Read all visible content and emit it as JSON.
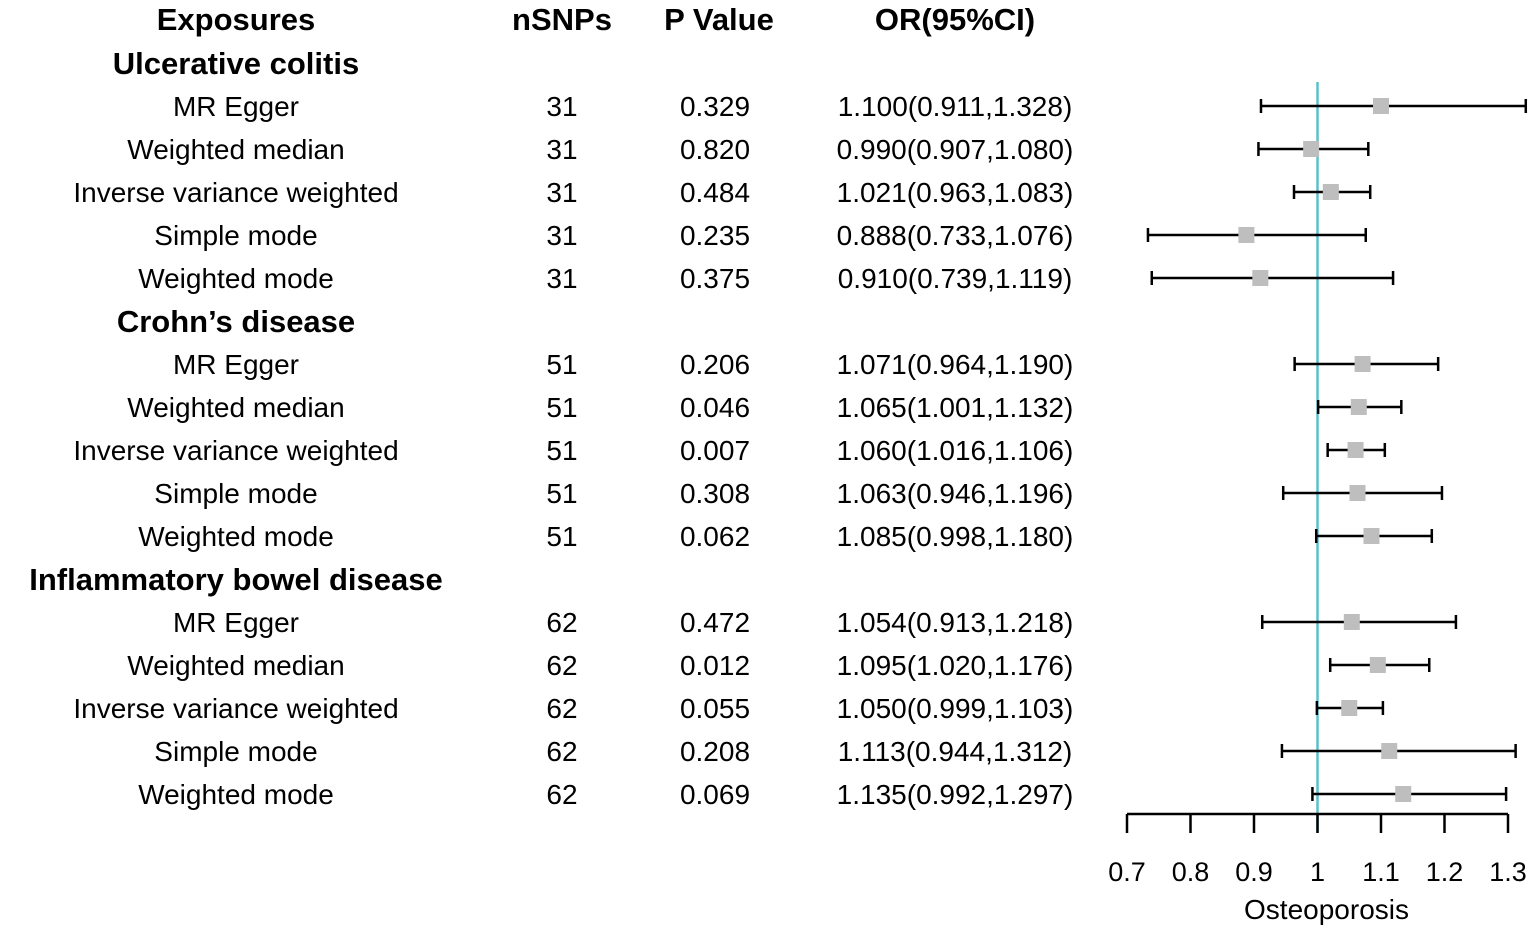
{
  "chart_data": {
    "type": "forest",
    "columns": {
      "exposure": "Exposures",
      "nsnps": "nSNPs",
      "pvalue": "P Value",
      "or": "OR(95%CI)"
    },
    "groups": [
      {
        "name": "Ulcerative colitis",
        "rows": [
          {
            "method": "MR Egger",
            "nsnps": "31",
            "p": "0.329",
            "or_text": "1.100(0.911,1.328)",
            "or": 1.1,
            "lo": 0.911,
            "hi": 1.328
          },
          {
            "method": "Weighted median",
            "nsnps": "31",
            "p": "0.820",
            "or_text": "0.990(0.907,1.080)",
            "or": 0.99,
            "lo": 0.907,
            "hi": 1.08
          },
          {
            "method": "Inverse variance weighted",
            "nsnps": "31",
            "p": "0.484",
            "or_text": "1.021(0.963,1.083)",
            "or": 1.021,
            "lo": 0.963,
            "hi": 1.083
          },
          {
            "method": "Simple mode",
            "nsnps": "31",
            "p": "0.235",
            "or_text": "0.888(0.733,1.076)",
            "or": 0.888,
            "lo": 0.733,
            "hi": 1.076
          },
          {
            "method": "Weighted mode",
            "nsnps": "31",
            "p": "0.375",
            "or_text": "0.910(0.739,1.119)",
            "or": 0.91,
            "lo": 0.739,
            "hi": 1.119
          }
        ]
      },
      {
        "name": "Crohn’s disease",
        "rows": [
          {
            "method": "MR Egger",
            "nsnps": "51",
            "p": "0.206",
            "or_text": "1.071(0.964,1.190)",
            "or": 1.071,
            "lo": 0.964,
            "hi": 1.19
          },
          {
            "method": "Weighted median",
            "nsnps": "51",
            "p": "0.046",
            "or_text": "1.065(1.001,1.132)",
            "or": 1.065,
            "lo": 1.001,
            "hi": 1.132
          },
          {
            "method": "Inverse variance weighted",
            "nsnps": "51",
            "p": "0.007",
            "or_text": "1.060(1.016,1.106)",
            "or": 1.06,
            "lo": 1.016,
            "hi": 1.106
          },
          {
            "method": "Simple mode",
            "nsnps": "51",
            "p": "0.308",
            "or_text": "1.063(0.946,1.196)",
            "or": 1.063,
            "lo": 0.946,
            "hi": 1.196
          },
          {
            "method": "Weighted mode",
            "nsnps": "51",
            "p": "0.062",
            "or_text": "1.085(0.998,1.180)",
            "or": 1.085,
            "lo": 0.998,
            "hi": 1.18
          }
        ]
      },
      {
        "name": "Inflammatory bowel disease",
        "rows": [
          {
            "method": "MR Egger",
            "nsnps": "62",
            "p": "0.472",
            "or_text": "1.054(0.913,1.218)",
            "or": 1.054,
            "lo": 0.913,
            "hi": 1.218
          },
          {
            "method": "Weighted median",
            "nsnps": "62",
            "p": "0.012",
            "or_text": "1.095(1.020,1.176)",
            "or": 1.095,
            "lo": 1.02,
            "hi": 1.176
          },
          {
            "method": "Inverse variance weighted",
            "nsnps": "62",
            "p": "0.055",
            "or_text": "1.050(0.999,1.103)",
            "or": 1.05,
            "lo": 0.999,
            "hi": 1.103
          },
          {
            "method": "Simple mode",
            "nsnps": "62",
            "p": "0.208",
            "or_text": "1.113(0.944,1.312)",
            "or": 1.113,
            "lo": 0.944,
            "hi": 1.312
          },
          {
            "method": "Weighted mode",
            "nsnps": "62",
            "p": "0.069",
            "or_text": "1.135(0.992,1.297)",
            "or": 1.135,
            "lo": 0.992,
            "hi": 1.297
          }
        ]
      }
    ],
    "xaxis": {
      "label": "Osteoporosis",
      "range": [
        0.7,
        1.3
      ],
      "ticks": [
        0.7,
        0.8,
        0.9,
        1.0,
        1.1,
        1.2,
        1.3
      ],
      "tick_labels": [
        "0.7",
        "0.8",
        "0.9",
        "1",
        "1.1",
        "1.2",
        "1.3"
      ]
    },
    "reference_line": 1.0,
    "colors": {
      "reference_line": "#5bbfcc",
      "marker": "#bebebe",
      "whisker": "#000000",
      "text": "#000000"
    }
  }
}
